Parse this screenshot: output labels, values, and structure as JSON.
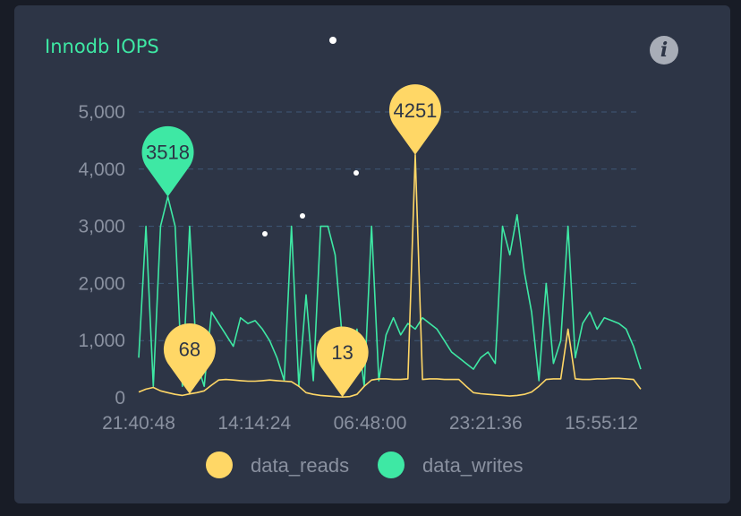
{
  "title": "Innodb IOPS",
  "info_icon": "info-icon",
  "chart_data": {
    "type": "line",
    "title": "Innodb IOPS",
    "ylim": [
      0,
      5000
    ],
    "yticks": [
      "0",
      "1,000",
      "2,000",
      "3,000",
      "4,000",
      "5,000"
    ],
    "xticks": [
      "21:40:48",
      "14:14:24",
      "06:48:00",
      "23:21:36",
      "15:55:12"
    ],
    "grid": true,
    "legend_position": "bottom-center",
    "series": [
      {
        "name": "data_reads",
        "color": "#ffd766",
        "values": [
          100,
          150,
          180,
          120,
          90,
          60,
          40,
          68,
          90,
          120,
          220,
          310,
          320,
          310,
          300,
          290,
          290,
          300,
          310,
          300,
          290,
          280,
          200,
          90,
          60,
          40,
          30,
          20,
          13,
          20,
          60,
          200,
          310,
          330,
          330,
          320,
          320,
          330,
          4251,
          320,
          330,
          330,
          320,
          320,
          320,
          200,
          90,
          70,
          60,
          50,
          40,
          30,
          40,
          60,
          100,
          200,
          320,
          330,
          330,
          1200,
          330,
          320,
          320,
          330,
          330,
          340,
          340,
          330,
          320,
          150
        ],
        "markers": [
          {
            "label": "68",
            "index": 7,
            "value": 68
          },
          {
            "label": "13",
            "index": 28,
            "value": 13
          },
          {
            "label": "4251",
            "index": 38,
            "value": 4251
          }
        ]
      },
      {
        "name": "data_writes",
        "color": "#3ee8a4",
        "values": [
          700,
          3000,
          200,
          3000,
          3518,
          3000,
          200,
          3000,
          600,
          200,
          1500,
          1300,
          1100,
          900,
          1400,
          1300,
          1350,
          1200,
          1000,
          700,
          300,
          3000,
          200,
          1800,
          300,
          3000,
          3000,
          2500,
          1000,
          700,
          1200,
          200,
          3000,
          300,
          1100,
          1400,
          1100,
          1300,
          1200,
          1400,
          1300,
          1200,
          1000,
          800,
          700,
          600,
          500,
          700,
          800,
          600,
          3000,
          2500,
          3200,
          2200,
          1500,
          300,
          2000,
          600,
          1000,
          3000,
          700,
          1300,
          1500,
          1200,
          1400,
          1350,
          1300,
          1200,
          900,
          500
        ],
        "markers": [
          {
            "label": "3518",
            "index": 4,
            "value": 3518
          }
        ]
      }
    ]
  }
}
